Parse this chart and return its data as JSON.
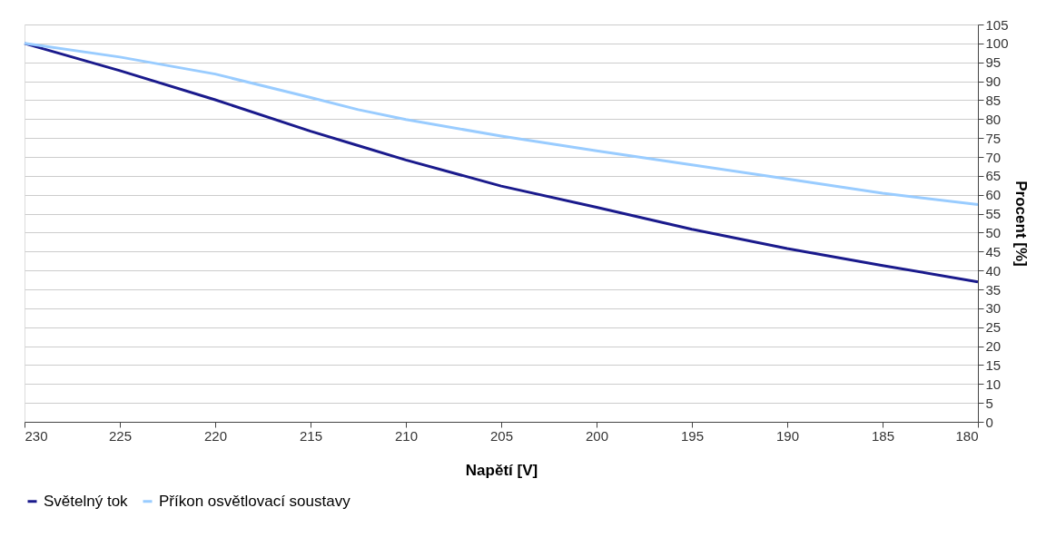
{
  "chart_data": {
    "type": "line",
    "xlabel": "Napětí [V]",
    "ylabel": "Procent [%]",
    "x": [
      230,
      225,
      220,
      215,
      212.5,
      210,
      205,
      200,
      195,
      190,
      185,
      180
    ],
    "series": [
      {
        "name": "Světelný tok",
        "color": "#1a1a8c",
        "values": [
          100,
          92.8,
          85.1,
          76.8,
          73,
          69.2,
          62.3,
          56.7,
          50.9,
          45.8,
          41.3,
          37.0
        ]
      },
      {
        "name": "Příkon osvětlovací soustavy",
        "color": "#99ccff",
        "values": [
          100,
          96.4,
          91.9,
          85.7,
          82.5,
          79.9,
          75.5,
          71.6,
          67.9,
          64.2,
          60.4,
          57.4
        ]
      }
    ],
    "xlim": [
      230,
      180
    ],
    "xticks": [
      230,
      225,
      220,
      215,
      210,
      205,
      200,
      195,
      190,
      185,
      180
    ],
    "ylim": [
      0,
      105
    ],
    "yticks": [
      0,
      5,
      10,
      15,
      20,
      25,
      30,
      35,
      40,
      45,
      50,
      55,
      60,
      65,
      70,
      75,
      80,
      85,
      90,
      95,
      100,
      105
    ],
    "grid": "y",
    "legend": "bottom",
    "marker": "none",
    "line_style": "solid"
  }
}
